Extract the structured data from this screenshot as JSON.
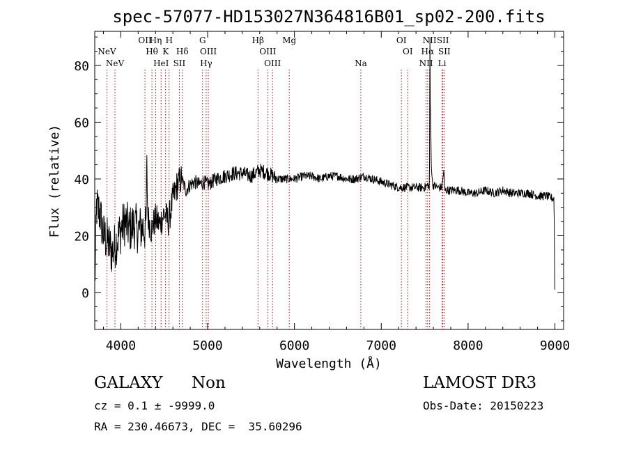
{
  "chart_data": {
    "type": "line",
    "title": "spec-57077-HD153027N364816B01_sp02-200.fits",
    "xlabel": "Wavelength (Å)",
    "ylabel": "Flux (relative)",
    "xlim": [
      3700,
      9100
    ],
    "ylim": [
      -13,
      92
    ],
    "xticks": [
      4000,
      5000,
      6000,
      7000,
      8000,
      9000
    ],
    "yticks": [
      0,
      20,
      40,
      60,
      80
    ],
    "anchors": [
      [
        3700,
        2
      ],
      [
        3720,
        30
      ],
      [
        3760,
        28
      ],
      [
        3800,
        20
      ],
      [
        3850,
        18
      ],
      [
        3900,
        14
      ],
      [
        3950,
        18
      ],
      [
        4000,
        22
      ],
      [
        4050,
        25
      ],
      [
        4100,
        22
      ],
      [
        4150,
        24
      ],
      [
        4200,
        22
      ],
      [
        4250,
        23
      ],
      [
        4290,
        22
      ],
      [
        4300,
        45
      ],
      [
        4310,
        27
      ],
      [
        4350,
        22
      ],
      [
        4400,
        26
      ],
      [
        4450,
        24
      ],
      [
        4500,
        28
      ],
      [
        4550,
        25
      ],
      [
        4600,
        33
      ],
      [
        4650,
        38
      ],
      [
        4700,
        40
      ],
      [
        4750,
        36
      ],
      [
        4800,
        38
      ],
      [
        4850,
        39
      ],
      [
        4900,
        38
      ],
      [
        4950,
        39
      ],
      [
        5000,
        38
      ],
      [
        5100,
        40
      ],
      [
        5200,
        41
      ],
      [
        5300,
        42
      ],
      [
        5400,
        42
      ],
      [
        5500,
        41
      ],
      [
        5600,
        43
      ],
      [
        5700,
        42
      ],
      [
        5800,
        40
      ],
      [
        5900,
        40
      ],
      [
        6000,
        40
      ],
      [
        6100,
        41
      ],
      [
        6200,
        41
      ],
      [
        6300,
        40
      ],
      [
        6400,
        41
      ],
      [
        6500,
        41
      ],
      [
        6600,
        40
      ],
      [
        6700,
        40
      ],
      [
        6800,
        41
      ],
      [
        6900,
        40
      ],
      [
        7000,
        39
      ],
      [
        7100,
        38
      ],
      [
        7200,
        37
      ],
      [
        7300,
        37
      ],
      [
        7400,
        37
      ],
      [
        7500,
        37
      ],
      [
        7540,
        38
      ],
      [
        7555,
        36
      ],
      [
        7560,
        89
      ],
      [
        7562,
        70
      ],
      [
        7570,
        58
      ],
      [
        7575,
        46
      ],
      [
        7590,
        38
      ],
      [
        7650,
        37
      ],
      [
        7700,
        37
      ],
      [
        7720,
        43
      ],
      [
        7730,
        36
      ],
      [
        7800,
        36
      ],
      [
        7900,
        36
      ],
      [
        8000,
        35
      ],
      [
        8100,
        35
      ],
      [
        8200,
        36
      ],
      [
        8300,
        35
      ],
      [
        8400,
        36
      ],
      [
        8500,
        35
      ],
      [
        8600,
        35
      ],
      [
        8700,
        35
      ],
      [
        8800,
        34
      ],
      [
        8900,
        34
      ],
      [
        8990,
        33
      ],
      [
        9000,
        1
      ]
    ],
    "lines": [
      {
        "label": "NeV",
        "wave": 3346,
        "row": 2
      },
      {
        "label": "NeV",
        "wave": 3426,
        "row": 3
      },
      {
        "label": "OII",
        "wave": 3727,
        "row": 1
      },
      {
        "label": "Hη",
        "wave": 3835,
        "row": 1
      },
      {
        "label": "Hθ",
        "wave": 3797,
        "row": 2
      },
      {
        "label": "HeI",
        "wave": 3889,
        "row": 3
      },
      {
        "label": "H",
        "wave": 3969,
        "row": 1
      },
      {
        "label": "K",
        "wave": 3934,
        "row": 2
      },
      {
        "label": "Hδ",
        "wave": 4102,
        "row": 2
      },
      {
        "label": "SII",
        "wave": 4072,
        "row": 3
      },
      {
        "label": "G",
        "wave": 4305,
        "row": 1
      },
      {
        "label": "OIII",
        "wave": 4363,
        "row": 2
      },
      {
        "label": "Hγ",
        "wave": 4341,
        "row": 3
      },
      {
        "label": "Hβ",
        "wave": 4861,
        "row": 1
      },
      {
        "label": "OIII",
        "wave": 4959,
        "row": 2
      },
      {
        "label": "OIII",
        "wave": 5007,
        "row": 3
      },
      {
        "label": "Mg",
        "wave": 5175,
        "row": 1
      },
      {
        "label": "Na",
        "wave": 5893,
        "row": 3
      },
      {
        "label": "OI",
        "wave": 6300,
        "row": 1
      },
      {
        "label": "OI",
        "wave": 6364,
        "row": 2
      },
      {
        "label": "NII",
        "wave": 6548,
        "row": 3
      },
      {
        "label": "Hα",
        "wave": 6563,
        "row": 2
      },
      {
        "label": "NII",
        "wave": 6583,
        "row": 1
      },
      {
        "label": "SII",
        "wave": 6716,
        "row": 1
      },
      {
        "label": "SII",
        "wave": 6731,
        "row": 2
      },
      {
        "label": "Li",
        "wave": 6708,
        "row": 3
      }
    ],
    "redshift_factor": 1.1479
  },
  "info": {
    "class": "GALAXY",
    "subclass": "Non",
    "survey": "LAMOST DR3",
    "cz": "cz = 0.1 ± -9999.0",
    "obs_date": "Obs-Date: 20150223",
    "coords": "RA = 230.46673, DEC =  35.60296"
  }
}
